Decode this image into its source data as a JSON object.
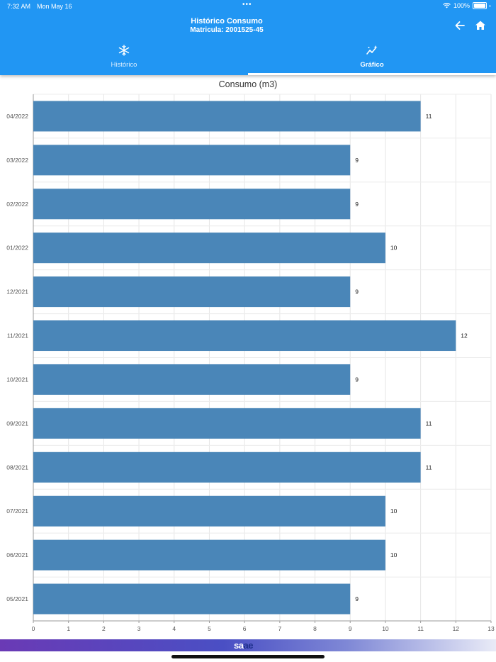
{
  "status_bar": {
    "time": "7:32 AM",
    "date": "Mon May 16",
    "battery": "100%"
  },
  "header": {
    "title": "Histórico Consumo",
    "subtitle": "Matricula: 2001525-45",
    "back_icon": "arrow-left-icon",
    "home_icon": "home-icon"
  },
  "tabs": [
    {
      "label": "Histórico",
      "icon": "snowflake-icon",
      "selected": false
    },
    {
      "label": "Gráfico",
      "icon": "chart-sparkle-icon",
      "selected": true
    }
  ],
  "colors": {
    "header": "#2196f3",
    "bar": "#4a86b8"
  },
  "chart_data": {
    "type": "bar",
    "orientation": "horizontal",
    "title": "Consumo (m3)",
    "categories": [
      "04/2022",
      "03/2022",
      "02/2022",
      "01/2022",
      "12/2021",
      "11/2021",
      "10/2021",
      "09/2021",
      "08/2021",
      "07/2021",
      "06/2021",
      "05/2021"
    ],
    "values": [
      11,
      9,
      9,
      10,
      9,
      12,
      9,
      11,
      11,
      10,
      10,
      9
    ],
    "xlim": [
      0,
      13
    ],
    "xticks": [
      0,
      1,
      2,
      3,
      4,
      5,
      6,
      7,
      8,
      9,
      10,
      11,
      12,
      13
    ],
    "grid": true
  },
  "footer": {
    "logo_part1": "sa",
    "logo_part2": "ae"
  }
}
